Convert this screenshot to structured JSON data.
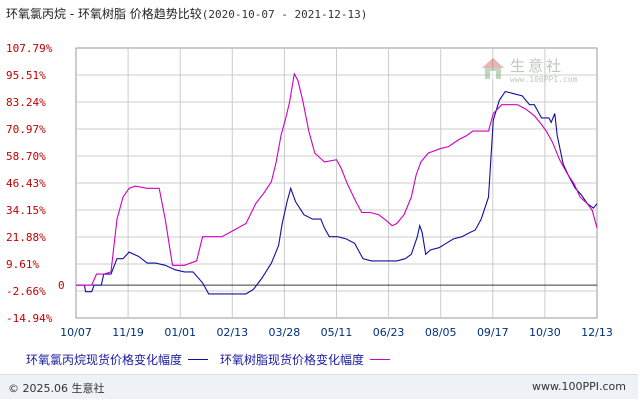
{
  "header": {
    "title": "环氧氯丙烷 - 环氧树脂 价格趋势比较",
    "date_range": "(2020-10-07 - 2021-12-13)"
  },
  "legend": {
    "series1_label": "环氧氯丙烷现货价格变化幅度",
    "series2_label": "环氧树脂现货价格变化幅度"
  },
  "footer": {
    "copyright": "© 2025.06 生意社",
    "url": "www.100PPI.com"
  },
  "watermark": {
    "name": "生意社",
    "url": "www.100PPI.com"
  },
  "colors": {
    "series1": "#1010a0",
    "series2": "#d000c0",
    "axis_tick": "#c00000",
    "x_tick": "#00307a",
    "grid": "#cccccc",
    "zero_line": "#3a3a3a"
  },
  "chart_data": {
    "type": "line",
    "title": "环氧氯丙烷 - 环氧树脂 价格趋势比较",
    "subtitle": "(2020-10-07 - 2021-12-13)",
    "xlabel": "",
    "ylabel": "",
    "x_ticks": [
      "10/07",
      "11/19",
      "01/01",
      "02/13",
      "03/28",
      "05/11",
      "06/23",
      "08/05",
      "09/17",
      "10/30",
      "12/13"
    ],
    "y_ticks": [
      "-14.94%",
      "-2.66%",
      "9.61%",
      "21.88%",
      "34.15%",
      "46.43%",
      "58.70%",
      "70.97%",
      "83.24%",
      "95.51%",
      "107.79%"
    ],
    "ylim": [
      -14.94,
      107.79
    ],
    "grid": true,
    "legend_position": "bottom",
    "series": [
      {
        "name": "环氧氯丙烷现货价格变化幅度",
        "color": "#1010a0",
        "points": [
          [
            "2020-10-07",
            0
          ],
          [
            "2020-10-14",
            0
          ],
          [
            "2020-10-15",
            -3
          ],
          [
            "2020-10-20",
            -3
          ],
          [
            "2020-10-22",
            0
          ],
          [
            "2020-10-28",
            0
          ],
          [
            "2020-10-30",
            5
          ],
          [
            "2020-11-05",
            5
          ],
          [
            "2020-11-10",
            12
          ],
          [
            "2020-11-15",
            12
          ],
          [
            "2020-11-20",
            15
          ],
          [
            "2020-11-28",
            13
          ],
          [
            "2020-12-05",
            10
          ],
          [
            "2020-12-12",
            10
          ],
          [
            "2020-12-20",
            9
          ],
          [
            "2020-12-28",
            7
          ],
          [
            "2021-01-05",
            6
          ],
          [
            "2021-01-12",
            6
          ],
          [
            "2021-01-20",
            1
          ],
          [
            "2021-01-25",
            -4
          ],
          [
            "2021-02-10",
            -4
          ],
          [
            "2021-02-25",
            -4
          ],
          [
            "2021-03-03",
            -2
          ],
          [
            "2021-03-10",
            3
          ],
          [
            "2021-03-18",
            10
          ],
          [
            "2021-03-24",
            18
          ],
          [
            "2021-03-27",
            28
          ],
          [
            "2021-03-31",
            38
          ],
          [
            "2021-04-03",
            44
          ],
          [
            "2021-04-07",
            38
          ],
          [
            "2021-04-14",
            32
          ],
          [
            "2021-04-21",
            30
          ],
          [
            "2021-04-28",
            30
          ],
          [
            "2021-05-01",
            26
          ],
          [
            "2021-05-05",
            22
          ],
          [
            "2021-05-12",
            22
          ],
          [
            "2021-05-19",
            21
          ],
          [
            "2021-05-26",
            19
          ],
          [
            "2021-06-02",
            12
          ],
          [
            "2021-06-09",
            11
          ],
          [
            "2021-06-16",
            11
          ],
          [
            "2021-06-23",
            11
          ],
          [
            "2021-06-30",
            11
          ],
          [
            "2021-07-07",
            12
          ],
          [
            "2021-07-12",
            14
          ],
          [
            "2021-07-17",
            22
          ],
          [
            "2021-07-19",
            27
          ],
          [
            "2021-07-21",
            24
          ],
          [
            "2021-07-24",
            14
          ],
          [
            "2021-07-28",
            16
          ],
          [
            "2021-08-04",
            17
          ],
          [
            "2021-08-10",
            19
          ],
          [
            "2021-08-16",
            21
          ],
          [
            "2021-08-23",
            22
          ],
          [
            "2021-08-30",
            24
          ],
          [
            "2021-09-03",
            25
          ],
          [
            "2021-09-08",
            30
          ],
          [
            "2021-09-14",
            40
          ],
          [
            "2021-09-18",
            75
          ],
          [
            "2021-09-23",
            84
          ],
          [
            "2021-09-28",
            88
          ],
          [
            "2021-10-05",
            87
          ],
          [
            "2021-10-12",
            86
          ],
          [
            "2021-10-18",
            82
          ],
          [
            "2021-10-22",
            82
          ],
          [
            "2021-10-26",
            78
          ],
          [
            "2021-10-28",
            76
          ],
          [
            "2021-11-03",
            76
          ],
          [
            "2021-11-05",
            74
          ],
          [
            "2021-11-08",
            78
          ],
          [
            "2021-11-10",
            68
          ],
          [
            "2021-11-15",
            55
          ],
          [
            "2021-11-20",
            49
          ],
          [
            "2021-11-25",
            44
          ],
          [
            "2021-11-30",
            41
          ],
          [
            "2021-12-05",
            37
          ],
          [
            "2021-12-10",
            35
          ],
          [
            "2021-12-13",
            37
          ]
        ]
      },
      {
        "name": "环氧树脂现货价格变化幅度",
        "color": "#d000c0",
        "points": [
          [
            "2020-10-07",
            0
          ],
          [
            "2020-10-20",
            0
          ],
          [
            "2020-10-24",
            5
          ],
          [
            "2020-10-30",
            5
          ],
          [
            "2020-11-05",
            6
          ],
          [
            "2020-11-10",
            30
          ],
          [
            "2020-11-15",
            40
          ],
          [
            "2020-11-20",
            44
          ],
          [
            "2020-11-25",
            45
          ],
          [
            "2020-12-05",
            44
          ],
          [
            "2020-12-15",
            44
          ],
          [
            "2020-12-20",
            30
          ],
          [
            "2020-12-26",
            9
          ],
          [
            "2021-01-05",
            9
          ],
          [
            "2021-01-15",
            11
          ],
          [
            "2021-01-20",
            22
          ],
          [
            "2021-02-05",
            22
          ],
          [
            "2021-02-15",
            25
          ],
          [
            "2021-02-25",
            28
          ],
          [
            "2021-03-05",
            37
          ],
          [
            "2021-03-12",
            42
          ],
          [
            "2021-03-18",
            47
          ],
          [
            "2021-03-22",
            56
          ],
          [
            "2021-03-26",
            68
          ],
          [
            "2021-03-30",
            76
          ],
          [
            "2021-04-02",
            83
          ],
          [
            "2021-04-06",
            96
          ],
          [
            "2021-04-09",
            93
          ],
          [
            "2021-04-13",
            84
          ],
          [
            "2021-04-18",
            70
          ],
          [
            "2021-04-23",
            60
          ],
          [
            "2021-05-01",
            56
          ],
          [
            "2021-05-11",
            57
          ],
          [
            "2021-05-15",
            53
          ],
          [
            "2021-05-20",
            46
          ],
          [
            "2021-05-27",
            38
          ],
          [
            "2021-06-01",
            33
          ],
          [
            "2021-06-08",
            33
          ],
          [
            "2021-06-15",
            32
          ],
          [
            "2021-06-22",
            29
          ],
          [
            "2021-06-26",
            27
          ],
          [
            "2021-06-30",
            28
          ],
          [
            "2021-07-06",
            32
          ],
          [
            "2021-07-12",
            40
          ],
          [
            "2021-07-16",
            50
          ],
          [
            "2021-07-20",
            56
          ],
          [
            "2021-07-26",
            60
          ],
          [
            "2021-08-05",
            62
          ],
          [
            "2021-08-12",
            63
          ],
          [
            "2021-08-20",
            66
          ],
          [
            "2021-08-27",
            68
          ],
          [
            "2021-09-01",
            70
          ],
          [
            "2021-09-08",
            70
          ],
          [
            "2021-09-14",
            70
          ],
          [
            "2021-09-18",
            78
          ],
          [
            "2021-09-25",
            82
          ],
          [
            "2021-10-01",
            82
          ],
          [
            "2021-10-08",
            82
          ],
          [
            "2021-10-15",
            80
          ],
          [
            "2021-10-22",
            77
          ],
          [
            "2021-10-28",
            73
          ],
          [
            "2021-11-01",
            70
          ],
          [
            "2021-11-06",
            65
          ],
          [
            "2021-11-12",
            57
          ],
          [
            "2021-11-18",
            51
          ],
          [
            "2021-11-24",
            46
          ],
          [
            "2021-11-29",
            40
          ],
          [
            "2021-12-05",
            37
          ],
          [
            "2021-12-09",
            34
          ],
          [
            "2021-12-13",
            26
          ]
        ]
      }
    ]
  }
}
